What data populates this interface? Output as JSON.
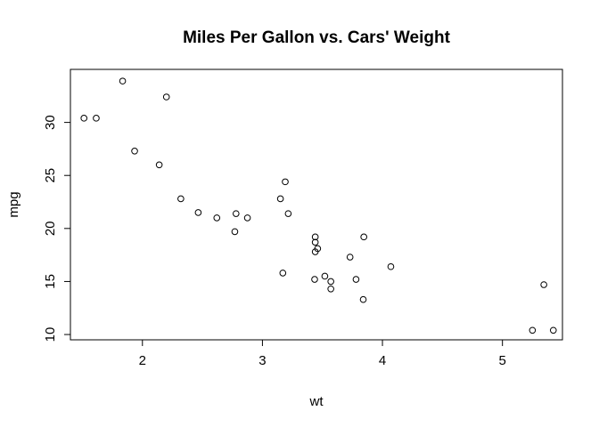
{
  "chart_data": {
    "type": "scatter",
    "title": "Miles Per Gallon vs. Cars' Weight",
    "xlabel": "wt",
    "ylabel": "mpg",
    "xlim": [
      1.4,
      5.5
    ],
    "ylim": [
      9.5,
      35
    ],
    "x_ticks": [
      2,
      3,
      4,
      5
    ],
    "y_ticks": [
      10,
      15,
      20,
      25,
      30
    ],
    "grid": false,
    "legend": "none",
    "point_style": "open-circle",
    "points": [
      {
        "x": 2.62,
        "y": 21.0
      },
      {
        "x": 2.875,
        "y": 21.0
      },
      {
        "x": 2.32,
        "y": 22.8
      },
      {
        "x": 3.215,
        "y": 21.4
      },
      {
        "x": 3.44,
        "y": 18.7
      },
      {
        "x": 3.46,
        "y": 18.1
      },
      {
        "x": 3.57,
        "y": 14.3
      },
      {
        "x": 3.19,
        "y": 24.4
      },
      {
        "x": 3.15,
        "y": 22.8
      },
      {
        "x": 3.44,
        "y": 19.2
      },
      {
        "x": 3.44,
        "y": 17.8
      },
      {
        "x": 4.07,
        "y": 16.4
      },
      {
        "x": 3.73,
        "y": 17.3
      },
      {
        "x": 3.78,
        "y": 15.2
      },
      {
        "x": 5.25,
        "y": 10.4
      },
      {
        "x": 5.424,
        "y": 10.4
      },
      {
        "x": 5.345,
        "y": 14.7
      },
      {
        "x": 2.2,
        "y": 32.4
      },
      {
        "x": 1.615,
        "y": 30.4
      },
      {
        "x": 1.835,
        "y": 33.9
      },
      {
        "x": 2.465,
        "y": 21.5
      },
      {
        "x": 3.52,
        "y": 15.5
      },
      {
        "x": 3.435,
        "y": 15.2
      },
      {
        "x": 3.84,
        "y": 13.3
      },
      {
        "x": 3.845,
        "y": 19.2
      },
      {
        "x": 1.935,
        "y": 27.3
      },
      {
        "x": 2.14,
        "y": 26.0
      },
      {
        "x": 1.513,
        "y": 30.4
      },
      {
        "x": 3.17,
        "y": 15.8
      },
      {
        "x": 2.77,
        "y": 19.7
      },
      {
        "x": 3.57,
        "y": 15.0
      },
      {
        "x": 2.78,
        "y": 21.4
      }
    ]
  }
}
